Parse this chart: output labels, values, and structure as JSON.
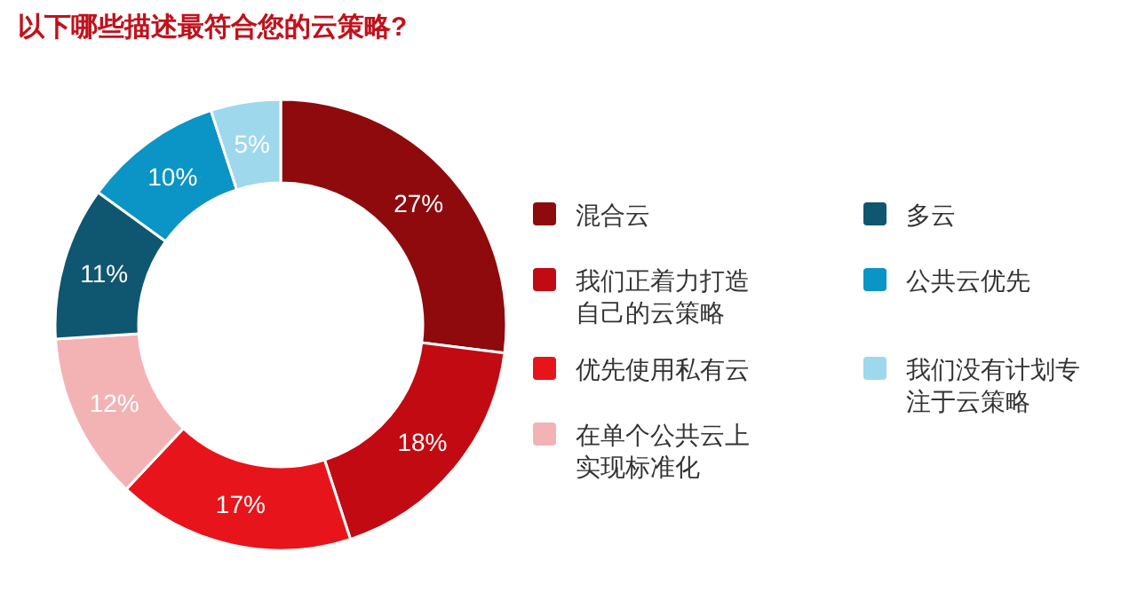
{
  "chart_data": {
    "type": "donut",
    "title": "以下哪些描述最符合您的云策略?",
    "categories": [
      "混合云",
      "我们正着力打造自己的云策略",
      "优先使用私有云",
      "在单个公共云上实现标准化",
      "多云",
      "公共云优先",
      "我们没有计划专注于云策略"
    ],
    "values": [
      27,
      18,
      17,
      12,
      11,
      10,
      5
    ],
    "value_labels": [
      "27%",
      "18%",
      "17%",
      "12%",
      "11%",
      "10%",
      "5%"
    ],
    "colors": [
      "#8e0a0d",
      "#c20a12",
      "#e8141c",
      "#f3b3b5",
      "#0f5670",
      "#0b94c6",
      "#9ed8ec"
    ],
    "legend": "right"
  }
}
